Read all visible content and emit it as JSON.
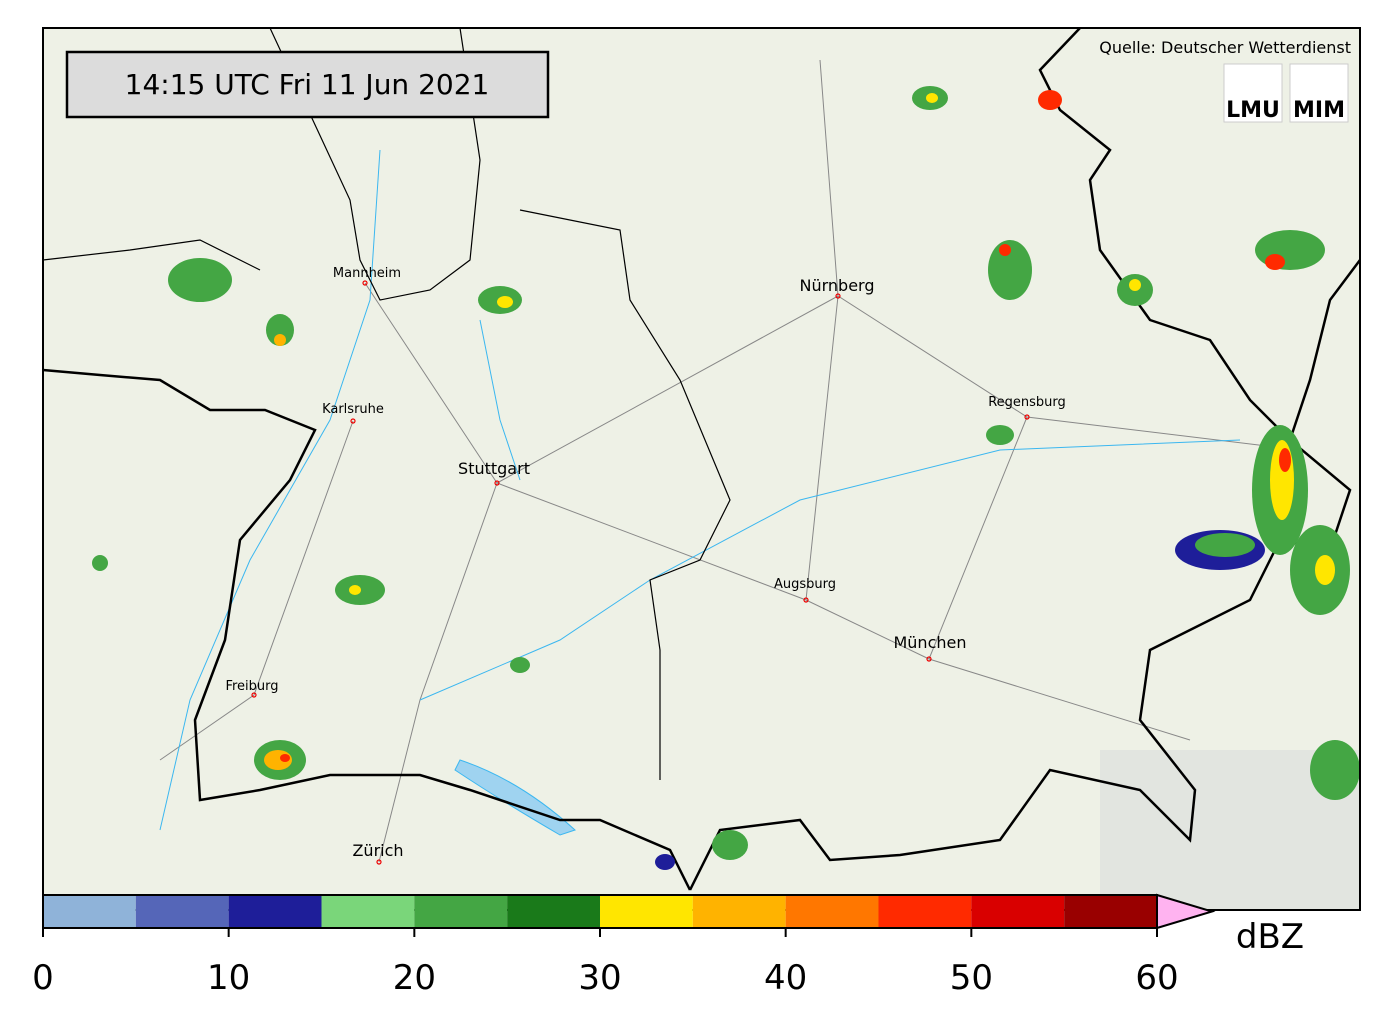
{
  "timestamp": "14:15 UTC  Fri 11 Jun 2021",
  "source": "Quelle: Deutscher Wetterdienst",
  "logos": [
    "LMU",
    "MIM"
  ],
  "cities": [
    "Mannheim",
    "Karlsruhe",
    "Stuttgart",
    "Nürnberg",
    "Regensburg",
    "Augsburg",
    "München",
    "Freiburg",
    "Zürich"
  ],
  "colorbar": {
    "unit": "dBZ",
    "bounds": [
      0,
      5,
      10,
      15,
      20,
      25,
      30,
      35,
      40,
      45,
      50,
      55,
      60
    ],
    "colors": [
      "#8fb3d9",
      "#5566b8",
      "#1e1e99",
      "#7ad67a",
      "#44a644",
      "#1a7a1a",
      "#ffe600",
      "#ffb300",
      "#ff7700",
      "#ff2a00",
      "#d90000",
      "#990000"
    ],
    "extend_color": "#ffb3f0",
    "ticks": [
      0,
      10,
      20,
      30,
      40,
      50,
      60
    ]
  }
}
